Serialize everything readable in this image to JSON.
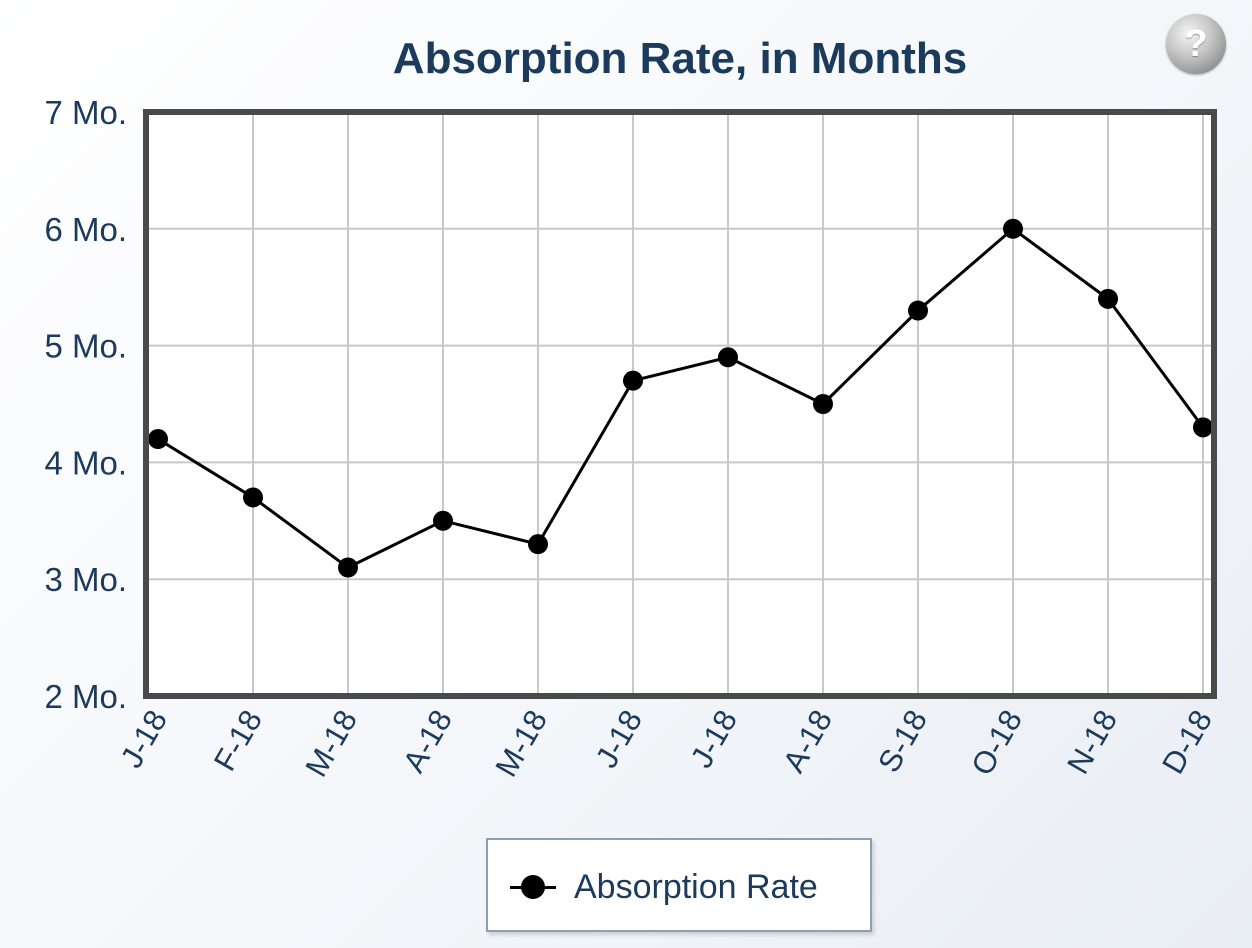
{
  "chart_data": {
    "type": "line",
    "title": "Absorption Rate, in Months",
    "categories": [
      "J-18",
      "F-18",
      "M-18",
      "A-18",
      "M-18",
      "J-18",
      "J-18",
      "A-18",
      "S-18",
      "O-18",
      "N-18",
      "D-18"
    ],
    "series": [
      {
        "name": "Absorption Rate",
        "values": [
          4.2,
          3.7,
          3.1,
          3.5,
          3.3,
          4.7,
          4.9,
          4.5,
          5.3,
          6.0,
          5.4,
          4.3
        ]
      }
    ],
    "y_ticks": [
      7,
      6,
      5,
      4,
      3,
      2
    ],
    "y_tick_labels": [
      "7 Mo.",
      "6 Mo.",
      "5 Mo.",
      "4 Mo.",
      "3 Mo.",
      "2 Mo."
    ],
    "ylim": [
      2,
      7
    ],
    "grid": true,
    "legend_position": "bottom-center",
    "colors": {
      "line": "#000000",
      "marker": "#000000",
      "grid": "#c8c8c8",
      "frame": "#4a4a4a",
      "text": "#1b3a5c"
    }
  },
  "help_button": {
    "label": "?",
    "icon": "question-mark-icon"
  }
}
